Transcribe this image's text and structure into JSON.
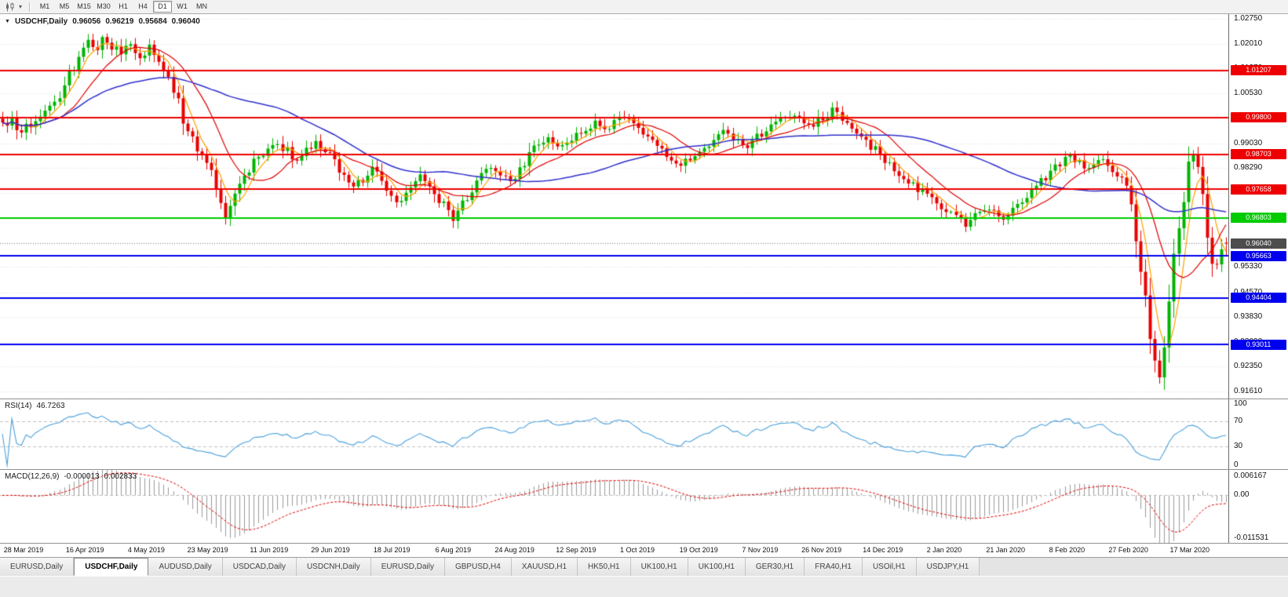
{
  "toolbar": {
    "timeframes": [
      "M1",
      "M5",
      "M15",
      "M30",
      "H1",
      "H4",
      "D1",
      "W1",
      "MN"
    ],
    "active_timeframe": "D1",
    "icons": [
      "candlestick-chart-icon",
      "chevron-down-icon"
    ]
  },
  "chart": {
    "symbol_title": "USDCHF,Daily",
    "ohlc": {
      "open": "0.96056",
      "high": "0.96219",
      "low": "0.95684",
      "close": "0.96040"
    },
    "price_axis_labels": [
      "1.02750",
      "1.02010",
      "1.01270",
      "1.00530",
      "0.99790",
      "0.99030",
      "0.98290",
      "0.97550",
      "0.96810",
      "0.96070",
      "0.95330",
      "0.94570",
      "0.93830",
      "0.93090",
      "0.92350",
      "0.91610"
    ],
    "level_lines": [
      {
        "value": "1.01207",
        "price": 1.01207,
        "color": "#ee0000",
        "kind": "resistance"
      },
      {
        "value": "0.99800",
        "price": 0.998,
        "color": "#ee0000",
        "kind": "resistance"
      },
      {
        "value": "0.98703",
        "price": 0.98703,
        "color": "#ee0000",
        "kind": "resistance"
      },
      {
        "value": "0.97658",
        "price": 0.97658,
        "color": "#ee0000",
        "kind": "resistance"
      },
      {
        "value": "0.96803",
        "price": 0.96803,
        "color": "#00cc00",
        "kind": "pivot"
      },
      {
        "value": "0.95663",
        "price": 0.95663,
        "color": "#0000ee",
        "kind": "support"
      },
      {
        "value": "0.94404",
        "price": 0.94404,
        "color": "#0000ee",
        "kind": "support"
      },
      {
        "value": "0.93011",
        "price": 0.93011,
        "color": "#0000ee",
        "kind": "support"
      }
    ],
    "current_price": {
      "value": "0.96040",
      "price": 0.9604,
      "badge_color": "#4d4d4d"
    },
    "date_labels": [
      "28 Mar 2019",
      "16 Apr 2019",
      "4 May 2019",
      "23 May 2019",
      "11 Jun 2019",
      "29 Jun 2019",
      "18 Jul 2019",
      "6 Aug 2019",
      "24 Aug 2019",
      "12 Sep 2019",
      "1 Oct 2019",
      "19 Oct 2019",
      "7 Nov 2019",
      "26 Nov 2019",
      "14 Dec 2019",
      "2 Jan 2020",
      "21 Jan 2020",
      "8 Feb 2020",
      "27 Feb 2020",
      "17 Mar 2020"
    ]
  },
  "rsi": {
    "label": "RSI(14)",
    "value": "46.7263",
    "period": 14,
    "levels": [
      70,
      30
    ],
    "axis_labels": [
      "100",
      "70",
      "30",
      "0"
    ],
    "line_color": "#4aa0dc"
  },
  "macd": {
    "label": "MACD(12,26,9)",
    "value_main": "-0.000013",
    "value_signal": "0.002833",
    "fast": 12,
    "slow": 26,
    "signal": 9,
    "axis_labels": [
      "0.006167",
      "0.00",
      "-0.011531"
    ],
    "histogram_color": "#9a9a9a",
    "signal_color": "#e00000"
  },
  "tab_bar": {
    "active_index": 1,
    "tabs": [
      "EURUSD,Daily",
      "USDCHF,Daily",
      "AUDUSD,Daily",
      "USDCAD,Daily",
      "USDCNH,Daily",
      "EURUSD,Daily",
      "GBPUSD,H4",
      "XAUUSD,H1",
      "HK50,H1",
      "UK100,H1",
      "UK100,H1",
      "GER30,H1",
      "FRA40,H1",
      "USOil,H1",
      "USDJPY,H1"
    ]
  },
  "chart_data": {
    "type": "candlestick",
    "title": "USDCHF,Daily",
    "timeframe": "D1",
    "visible_bars": 259,
    "axis_top": 1.0289,
    "axis_bottom": 0.914,
    "high_extreme": 1.0226,
    "low_extreme": 0.9166,
    "last_candle": {
      "open": 0.96056,
      "high": 0.96219,
      "low": 0.95684,
      "close": 0.9604
    },
    "bull_color": "#00b400",
    "bear_color": "#e80000",
    "noise_seed": 20200331,
    "moving_averages": [
      {
        "period": 5,
        "color": "#ffa000"
      },
      {
        "period": 13,
        "color": "#e00000"
      },
      {
        "period": 45,
        "color": "#3030cc"
      }
    ],
    "price_path_anchors": [
      [
        0,
        0.9955
      ],
      [
        2,
        0.9975
      ],
      [
        4,
        0.994
      ],
      [
        6,
        0.996
      ],
      [
        8,
        0.9985
      ],
      [
        10,
        1.0005
      ],
      [
        12,
        1.0045
      ],
      [
        14,
        1.0105
      ],
      [
        16,
        1.016
      ],
      [
        18,
        1.02
      ],
      [
        20,
        1.0185
      ],
      [
        21,
        1.022
      ],
      [
        23,
        1.019
      ],
      [
        25,
        1.017
      ],
      [
        27,
        1.0205
      ],
      [
        29,
        1.0165
      ],
      [
        31,
        1.019
      ],
      [
        33,
        1.015
      ],
      [
        35,
        1.011
      ],
      [
        36,
        1.006
      ],
      [
        38,
        0.9985
      ],
      [
        40,
        0.993
      ],
      [
        42,
        0.986
      ],
      [
        44,
        0.9805
      ],
      [
        46,
        0.9735
      ],
      [
        47,
        0.9695
      ],
      [
        48,
        0.972
      ],
      [
        50,
        0.9775
      ],
      [
        52,
        0.983
      ],
      [
        54,
        0.9865
      ],
      [
        56,
        0.9885
      ],
      [
        58,
        0.9905
      ],
      [
        60,
        0.988
      ],
      [
        62,
        0.9855
      ],
      [
        64,
        0.989
      ],
      [
        66,
        0.9905
      ],
      [
        68,
        0.9885
      ],
      [
        70,
        0.985
      ],
      [
        72,
        0.98
      ],
      [
        74,
        0.976
      ],
      [
        76,
        0.98
      ],
      [
        78,
        0.983
      ],
      [
        80,
        0.979
      ],
      [
        82,
        0.975
      ],
      [
        84,
        0.972
      ],
      [
        86,
        0.976
      ],
      [
        88,
        0.98
      ],
      [
        90,
        0.977
      ],
      [
        92,
        0.973
      ],
      [
        94,
        0.97
      ],
      [
        95,
        0.968
      ],
      [
        97,
        0.972
      ],
      [
        99,
        0.976
      ],
      [
        101,
        0.98
      ],
      [
        103,
        0.983
      ],
      [
        105,
        0.981
      ],
      [
        107,
        0.979
      ],
      [
        109,
        0.983
      ],
      [
        111,
        0.987
      ],
      [
        113,
        0.99
      ],
      [
        115,
        0.9915
      ],
      [
        117,
        0.989
      ],
      [
        119,
        0.9905
      ],
      [
        121,
        0.993
      ],
      [
        123,
        0.995
      ],
      [
        125,
        0.9965
      ],
      [
        127,
        0.9945
      ],
      [
        129,
        0.997
      ],
      [
        131,
        0.998
      ],
      [
        133,
        0.9955
      ],
      [
        135,
        0.993
      ],
      [
        137,
        0.99
      ],
      [
        139,
        0.9875
      ],
      [
        141,
        0.9855
      ],
      [
        143,
        0.984
      ],
      [
        145,
        0.986
      ],
      [
        147,
        0.9885
      ],
      [
        149,
        0.9905
      ],
      [
        151,
        0.9925
      ],
      [
        153,
        0.994
      ],
      [
        155,
        0.991
      ],
      [
        157,
        0.989
      ],
      [
        159,
        0.992
      ],
      [
        161,
        0.9945
      ],
      [
        163,
        0.9965
      ],
      [
        165,
        0.998
      ],
      [
        167,
        0.999
      ],
      [
        169,
        0.997
      ],
      [
        171,
        0.995
      ],
      [
        173,
        0.998
      ],
      [
        175,
        1.0
      ],
      [
        177,
        0.998
      ],
      [
        179,
        0.995
      ],
      [
        181,
        0.9925
      ],
      [
        183,
        0.9895
      ],
      [
        185,
        0.9865
      ],
      [
        187,
        0.984
      ],
      [
        189,
        0.9815
      ],
      [
        191,
        0.979
      ],
      [
        193,
        0.9765
      ],
      [
        195,
        0.9745
      ],
      [
        197,
        0.972
      ],
      [
        199,
        0.97
      ],
      [
        201,
        0.968
      ],
      [
        203,
        0.966
      ],
      [
        205,
        0.969
      ],
      [
        207,
        0.9715
      ],
      [
        209,
        0.969
      ],
      [
        211,
        0.967
      ],
      [
        213,
        0.97
      ],
      [
        215,
        0.973
      ],
      [
        217,
        0.976
      ],
      [
        219,
        0.979
      ],
      [
        221,
        0.982
      ],
      [
        223,
        0.9845
      ],
      [
        225,
        0.9865
      ],
      [
        227,
        0.985
      ],
      [
        229,
        0.9825
      ],
      [
        231,
        0.9855
      ],
      [
        233,
        0.983
      ],
      [
        235,
        0.9805
      ],
      [
        237,
        0.9775
      ],
      [
        238,
        0.9705
      ],
      [
        239,
        0.962
      ],
      [
        240,
        0.952
      ],
      [
        241,
        0.942
      ],
      [
        242,
        0.933
      ],
      [
        243,
        0.925
      ],
      [
        244,
        0.919
      ],
      [
        245,
        0.929
      ],
      [
        246,
        0.943
      ],
      [
        247,
        0.9555
      ],
      [
        248,
        0.966
      ],
      [
        249,
        0.975
      ],
      [
        250,
        0.9835
      ],
      [
        251,
        0.988
      ],
      [
        252,
        0.9835
      ],
      [
        253,
        0.974
      ],
      [
        254,
        0.9645
      ],
      [
        255,
        0.957
      ],
      [
        256,
        0.953
      ],
      [
        257,
        0.9575
      ],
      [
        258,
        0.9604
      ]
    ]
  }
}
